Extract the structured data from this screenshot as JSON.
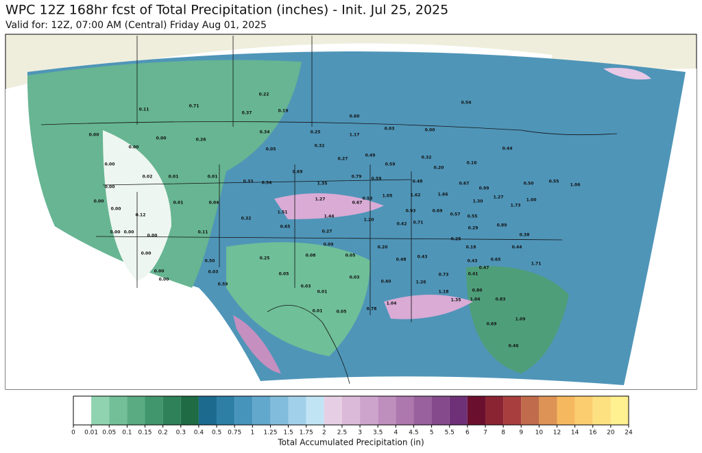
{
  "title": "WPC 12Z 168hr fcst of Total Precipitation (inches) - Init. Jul 25, 2025",
  "subtitle": "Valid for: 12Z, 07:00 AM (Central) Friday Aug 01, 2025",
  "colorbar": {
    "title": "Total Accumulated Precipitation (in)",
    "ticks": [
      0,
      0.01,
      0.05,
      0.1,
      0.15,
      0.2,
      0.3,
      0.4,
      0.5,
      0.75,
      1,
      1.25,
      1.5,
      1.75,
      2,
      2.5,
      3,
      3.5,
      4,
      4.5,
      5,
      5.5,
      6,
      7,
      8,
      9,
      10,
      12,
      14,
      16,
      20,
      24
    ],
    "colors": [
      "#ffffff",
      "#8fd3b0",
      "#72bf98",
      "#5aab82",
      "#42966d",
      "#2e8158",
      "#1e6b44",
      "#1d6a8f",
      "#2d7fa6",
      "#4693bb",
      "#62a7cc",
      "#82bcdc",
      "#a1d0ea",
      "#c1e4f5",
      "#e6cfe4",
      "#dbb9d8",
      "#cda4cb",
      "#be8ebd",
      "#ad78ae",
      "#99619d",
      "#844a8b",
      "#6e3178",
      "#6b0f2e",
      "#8a2433",
      "#a83f3e",
      "#c06b4b",
      "#dd9355",
      "#f6b85e",
      "#fbcd6e",
      "#fde07f",
      "#fff090",
      "#fffa9c"
    ]
  },
  "map": {
    "labels": [
      "0.11",
      "0.71",
      "0.22",
      "0.37",
      "0.19",
      "0.54",
      "0.60",
      "0.34",
      "0.25",
      "0.26",
      "0.05",
      "0.32",
      "1.17",
      "0.03",
      "0.00",
      "0.00",
      "0.00",
      "0.00",
      "0.27",
      "0.49",
      "0.32",
      "0.20",
      "0.16",
      "0.44",
      "0.00",
      "0.59",
      "0.02",
      "0.01",
      "0.01",
      "0.33",
      "0.54",
      "0.69",
      "1.35",
      "0.79",
      "0.59",
      "0.48",
      "0.67",
      "0.99",
      "0.50",
      "0.55",
      "1.06",
      "0.00",
      "0.00",
      "0.01",
      "0.04",
      "1.27",
      "0.67",
      "0.53",
      "1.05",
      "1.62",
      "1.66",
      "1.27",
      "1.30",
      "1.73",
      "1.00",
      "0.00",
      "0.12",
      "1.51",
      "1.44",
      "1.20",
      "0.93",
      "0.69",
      "0.57",
      "0.55",
      "0.00",
      "0.00",
      "0.00",
      "0.32",
      "0.65",
      "0.42",
      "0.71",
      "0.29",
      "0.89",
      "0.11",
      "0.27",
      "0.38",
      "0.25",
      "0.09",
      "0.20",
      "0.18",
      "0.44",
      "0.00",
      "0.08",
      "0.05",
      "0.25",
      "0.50",
      "0.48",
      "0.43",
      "0.43",
      "0.65",
      "1.71",
      "0.00",
      "0.03",
      "0.05",
      "0.03",
      "0.40",
      "0.73",
      "0.41",
      "0.47",
      "0.00",
      "0.59",
      "0.03",
      "1.26",
      "0.01",
      "1.18",
      "0.80",
      "0.83",
      "1.04",
      "0.78",
      "0.01",
      "0.05",
      "1.04",
      "1.35",
      "1.09",
      "0.69",
      "0.46"
    ]
  }
}
